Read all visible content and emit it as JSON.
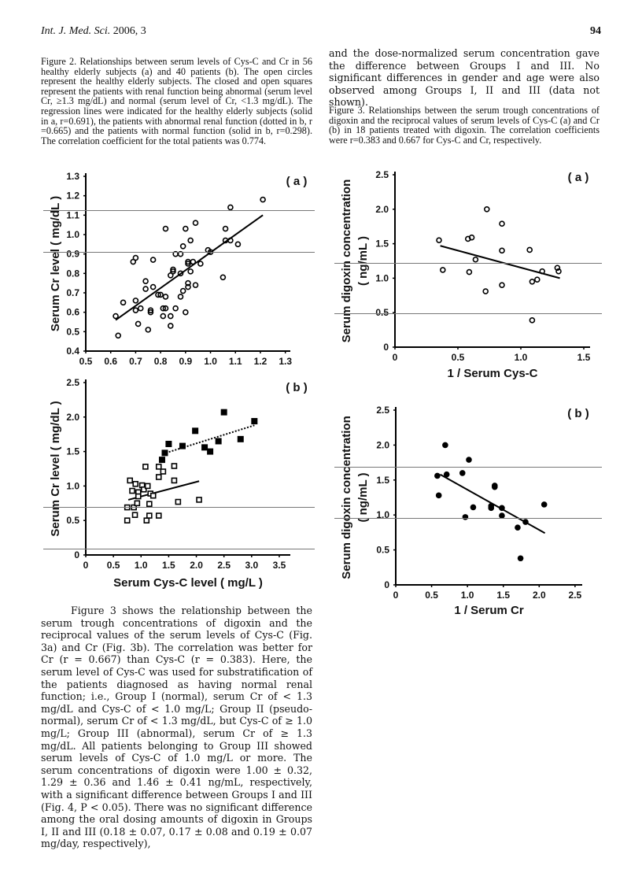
{
  "header": {
    "journal": "Int. J. Med. Sci.",
    "year_volume": "2006, 3",
    "page_number": "94"
  },
  "fig2_caption": "Figure 2. Relationships between serum levels of Cys-C and Cr in 56 healthy elderly subjects (a) and 40 patients (b). The open circles represent the healthy elderly subjects. The closed and open squares represent the patients with renal function being abnormal (serum level Cr, ≥1.3 mg/dL) and normal (serum level of Cr, <1.3 mg/dL). The regression lines were indicated for the healthy elderly subjects (solid in a, r=0.691), the patients with abnormal renal function (dotted in b, r =0.665) and the patients with normal function (solid in b, r=0.298). The correlation coefficient for the total patients was 0.774.",
  "body_paragraph": "Figure 3 shows the relationship between the serum trough concentrations of digoxin and the reciprocal values of the serum levels of Cys-C (Fig. 3a) and Cr (Fig. 3b).   The correlation was better for Cr (r = 0.667) than Cys-C (r = 0.383).   Here, the serum level of Cys-C was used for substratification of the patients diagnosed as having normal renal function; i.e., Group I (normal), serum Cr of < 1.3 mg/dL and Cys-C of < 1.0 mg/L; Group II (pseudo-normal), serum Cr of < 1.3 mg/dL, but Cys-C of ≥ 1.0 mg/L; Group III (abnormal), serum Cr of ≥ 1.3 mg/dL.   All patients belonging to Group III showed serum levels of Cys-C of 1.0 mg/L or more.   The serum concentrations of digoxin were 1.00 ± 0.32, 1.29 ± 0.36 and 1.46 ± 0.41 ng/mL, respectively, with a significant difference between Groups I and III (Fig. 4, P < 0.05). There was no significant difference among the oral dosing amounts of digoxin in Groups I, II and III (0.18 ± 0.07, 0.17 ± 0.08 and 0.19 ± 0.07 mg/day, respectively),",
  "right_paragraph": "and the dose-normalized serum concentration gave the difference between Groups I and III.   No significant differences in gender and age were also observed among Groups I, II and III (data not shown).",
  "fig3_caption": "Figure 3. Relationships between the serum trough concentrations of digoxin and the reciprocal values of serum levels of Cys-C (a) and Cr (b) in 18 patients treated with digoxin. The correlation coefficients were r=0.383 and 0.667 for Cys-C and Cr, respectively.",
  "chart_data": [
    {
      "type": "scatter",
      "panel": "( a )",
      "xlabel": "",
      "ylabel": "Serum Cr level ( mg/dL )",
      "ylabel2": "",
      "xlim": [
        0.5,
        1.32
      ],
      "ylim": [
        0.4,
        1.3
      ],
      "xticks": [
        "0.5",
        "0.6",
        "0.7",
        "0.8",
        "0.9",
        "1.0",
        "1.1",
        "1.2",
        "1.3"
      ],
      "yticks": [
        "0.4",
        "0.5",
        "0.6",
        "0.7",
        "0.8",
        "0.9",
        "1.0",
        "1.1",
        "1.2",
        "1.3"
      ],
      "series": [
        {
          "marker": "open-circle",
          "points": [
            [
              0.62,
              0.58
            ],
            [
              0.63,
              0.48
            ],
            [
              0.65,
              0.65
            ],
            [
              0.69,
              0.86
            ],
            [
              0.7,
              0.88
            ],
            [
              0.7,
              0.66
            ],
            [
              0.7,
              0.61
            ],
            [
              0.71,
              0.54
            ],
            [
              0.72,
              0.62
            ],
            [
              0.74,
              0.76
            ],
            [
              0.74,
              0.72
            ],
            [
              0.75,
              0.51
            ],
            [
              0.76,
              0.61
            ],
            [
              0.76,
              0.6
            ],
            [
              0.77,
              0.87
            ],
            [
              0.77,
              0.73
            ],
            [
              0.79,
              0.69
            ],
            [
              0.8,
              0.69
            ],
            [
              0.81,
              0.62
            ],
            [
              0.81,
              0.58
            ],
            [
              0.82,
              1.03
            ],
            [
              0.82,
              0.68
            ],
            [
              0.82,
              0.62
            ],
            [
              0.84,
              0.79
            ],
            [
              0.84,
              0.58
            ],
            [
              0.84,
              0.53
            ],
            [
              0.85,
              0.82
            ],
            [
              0.85,
              0.81
            ],
            [
              0.86,
              0.9
            ],
            [
              0.86,
              0.62
            ],
            [
              0.88,
              0.9
            ],
            [
              0.88,
              0.8
            ],
            [
              0.88,
              0.68
            ],
            [
              0.89,
              0.94
            ],
            [
              0.89,
              0.71
            ],
            [
              0.9,
              1.03
            ],
            [
              0.9,
              0.6
            ],
            [
              0.91,
              0.86
            ],
            [
              0.91,
              0.85
            ],
            [
              0.91,
              0.75
            ],
            [
              0.91,
              0.73
            ],
            [
              0.92,
              0.97
            ],
            [
              0.92,
              0.81
            ],
            [
              0.93,
              0.86
            ],
            [
              0.94,
              1.06
            ],
            [
              0.94,
              0.74
            ],
            [
              0.96,
              0.85
            ],
            [
              0.99,
              0.92
            ],
            [
              1.0,
              0.91
            ],
            [
              1.05,
              0.78
            ],
            [
              1.06,
              1.03
            ],
            [
              1.06,
              0.97
            ],
            [
              1.08,
              1.14
            ],
            [
              1.08,
              0.97
            ],
            [
              1.11,
              0.95
            ],
            [
              1.21,
              1.18
            ]
          ]
        }
      ],
      "lines": [
        {
          "style": "solid",
          "from": [
            0.62,
            0.56
          ],
          "to": [
            1.21,
            1.1
          ]
        }
      ]
    },
    {
      "type": "scatter",
      "panel": "( b )",
      "xlabel": "Serum Cys-C level ( mg/L )",
      "ylabel": "Serum Cr level ( mg/dL )",
      "ylabel2": "",
      "xlim": [
        0,
        3.7
      ],
      "ylim": [
        0,
        2.5
      ],
      "xticks": [
        "0",
        "0.5",
        "1.0",
        "1.5",
        "2.0",
        "2.5",
        "3.0",
        "3.5"
      ],
      "yticks": [
        "0",
        "0.5",
        "1.0",
        "1.5",
        "2.0",
        "2.5"
      ],
      "series": [
        {
          "marker": "closed-square",
          "points": [
            [
              1.38,
              1.38
            ],
            [
              1.43,
              1.48
            ],
            [
              1.5,
              1.61
            ],
            [
              1.75,
              1.58
            ],
            [
              1.98,
              1.8
            ],
            [
              2.15,
              1.56
            ],
            [
              2.25,
              1.5
            ],
            [
              2.4,
              1.65
            ],
            [
              2.5,
              2.07
            ],
            [
              2.8,
              1.68
            ],
            [
              3.05,
              1.94
            ]
          ]
        },
        {
          "marker": "open-square",
          "points": [
            [
              0.75,
              0.5
            ],
            [
              0.75,
              0.69
            ],
            [
              0.8,
              1.08
            ],
            [
              0.84,
              0.93
            ],
            [
              0.87,
              0.69
            ],
            [
              0.89,
              0.58
            ],
            [
              0.9,
              1.03
            ],
            [
              0.93,
              0.75
            ],
            [
              0.95,
              0.91
            ],
            [
              0.95,
              0.85
            ],
            [
              1.02,
              1.01
            ],
            [
              1.05,
              0.95
            ],
            [
              1.08,
              1.28
            ],
            [
              1.1,
              0.5
            ],
            [
              1.12,
              1.0
            ],
            [
              1.15,
              0.74
            ],
            [
              1.15,
              0.57
            ],
            [
              1.17,
              0.89
            ],
            [
              1.22,
              0.86
            ],
            [
              1.32,
              1.28
            ],
            [
              1.32,
              1.13
            ],
            [
              1.32,
              0.57
            ],
            [
              1.4,
              1.21
            ],
            [
              1.6,
              1.29
            ],
            [
              1.6,
              1.08
            ],
            [
              1.67,
              0.77
            ],
            [
              2.05,
              0.8
            ]
          ]
        }
      ],
      "lines": [
        {
          "style": "solid",
          "from": [
            0.77,
            0.8
          ],
          "to": [
            2.05,
            1.07
          ]
        },
        {
          "style": "dotted",
          "from": [
            1.45,
            1.48
          ],
          "to": [
            3.05,
            1.88
          ]
        }
      ]
    },
    {
      "type": "scatter",
      "panel": "( a )",
      "xlabel": "1 / Serum Cys-C",
      "ylabel": "Serum digoxin concentration",
      "ylabel2": "( ng/mL )",
      "xlim": [
        0,
        1.55
      ],
      "ylim": [
        0,
        2.5
      ],
      "xticks": [
        "0",
        "0.5",
        "1.0",
        "1.5"
      ],
      "yticks": [
        "0",
        "0.5",
        "1.0",
        "1.5",
        "2.0",
        "2.5"
      ],
      "series": [
        {
          "marker": "open-circle",
          "points": [
            [
              0.35,
              1.55
            ],
            [
              0.38,
              1.12
            ],
            [
              0.58,
              1.57
            ],
            [
              0.59,
              1.09
            ],
            [
              0.61,
              1.59
            ],
            [
              0.64,
              1.27
            ],
            [
              0.72,
              0.81
            ],
            [
              0.73,
              2.0
            ],
            [
              0.85,
              1.79
            ],
            [
              0.85,
              1.4
            ],
            [
              0.85,
              0.9
            ],
            [
              1.07,
              1.41
            ],
            [
              1.09,
              0.95
            ],
            [
              1.09,
              0.39
            ],
            [
              1.13,
              0.98
            ],
            [
              1.17,
              1.1
            ],
            [
              1.29,
              1.15
            ],
            [
              1.3,
              1.1
            ]
          ]
        }
      ],
      "lines": [
        {
          "style": "solid",
          "from": [
            0.36,
            1.47
          ],
          "to": [
            1.31,
            1.0
          ]
        }
      ]
    },
    {
      "type": "scatter",
      "panel": "( b )",
      "xlabel": "1 / Serum Cr",
      "ylabel": "Serum digoxin concentration",
      "ylabel2": "( ng/mL )",
      "xlim": [
        0,
        2.6
      ],
      "ylim": [
        0,
        2.5
      ],
      "xticks": [
        "0",
        "0.5",
        "1.0",
        "1.5",
        "2.0",
        "2.5"
      ],
      "yticks": [
        "0",
        "0.5",
        "1.0",
        "1.5",
        "2.0",
        "2.5"
      ],
      "series": [
        {
          "marker": "closed-circle",
          "points": [
            [
              0.58,
              1.56
            ],
            [
              0.6,
              1.28
            ],
            [
              0.69,
              2.0
            ],
            [
              0.71,
              1.58
            ],
            [
              0.93,
              1.6
            ],
            [
              0.97,
              0.97
            ],
            [
              1.02,
              1.79
            ],
            [
              1.08,
              1.11
            ],
            [
              1.33,
              1.13
            ],
            [
              1.33,
              1.1
            ],
            [
              1.38,
              1.42
            ],
            [
              1.38,
              1.4
            ],
            [
              1.48,
              1.1
            ],
            [
              1.48,
              0.99
            ],
            [
              1.7,
              0.82
            ],
            [
              1.74,
              0.38
            ],
            [
              1.81,
              0.9
            ],
            [
              2.07,
              1.15
            ]
          ]
        }
      ],
      "lines": [
        {
          "style": "solid",
          "from": [
            0.62,
            1.58
          ],
          "to": [
            2.08,
            0.74
          ]
        }
      ]
    }
  ]
}
